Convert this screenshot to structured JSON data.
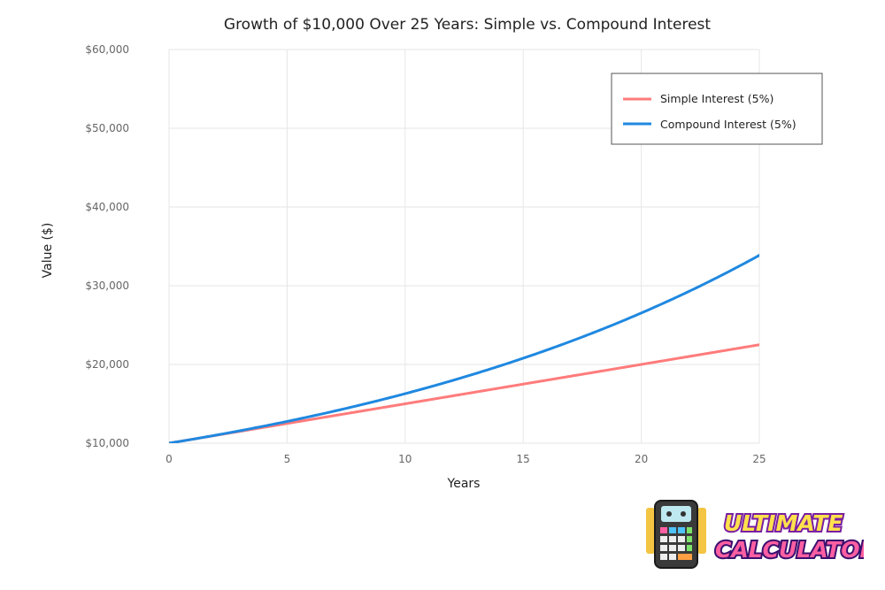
{
  "chart_data": {
    "type": "line",
    "title": "Growth of $10,000 Over 25 Years: Simple vs. Compound Interest",
    "xlabel": "Years",
    "ylabel": "Value ($)",
    "xlim": [
      0,
      25
    ],
    "ylim": [
      10000,
      60000
    ],
    "x_ticks": [
      0,
      5,
      10,
      15,
      20,
      25
    ],
    "y_ticks": [
      10000,
      20000,
      30000,
      40000,
      50000,
      60000
    ],
    "y_tick_labels": [
      "$10,000",
      "$20,000",
      "$30,000",
      "$40,000",
      "$50,000",
      "$60,000"
    ],
    "grid": true,
    "legend_position": "top-right",
    "principal": 10000,
    "rate": 0.05,
    "x": [
      0,
      1,
      2,
      3,
      4,
      5,
      6,
      7,
      8,
      9,
      10,
      11,
      12,
      13,
      14,
      15,
      16,
      17,
      18,
      19,
      20,
      21,
      22,
      23,
      24,
      25
    ],
    "series": [
      {
        "name": "Simple Interest (5%)",
        "color": "#ff7b7b",
        "values": [
          10000,
          10500,
          11000,
          11500,
          12000,
          12500,
          13000,
          13500,
          14000,
          14500,
          15000,
          15500,
          16000,
          16500,
          17000,
          17500,
          18000,
          18500,
          19000,
          19500,
          20000,
          20500,
          21000,
          21500,
          22000,
          22500
        ]
      },
      {
        "name": "Compound Interest (5%)",
        "color": "#1f88e0",
        "values": [
          10000,
          10500,
          11025,
          11576,
          12155,
          12763,
          13401,
          14071,
          14775,
          15513,
          16289,
          17103,
          17959,
          18856,
          19799,
          20789,
          21829,
          22920,
          24066,
          25270,
          26533,
          27860,
          29253,
          30715,
          32251,
          33864
        ]
      }
    ]
  },
  "logo": {
    "text_line1": "ULTIMATE",
    "text_line2": "CALCULATORS",
    "icon": "calculator-icon"
  }
}
